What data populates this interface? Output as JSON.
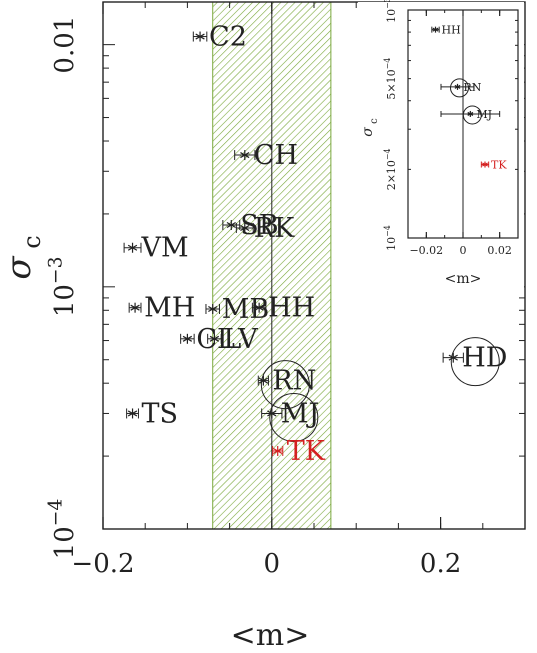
{
  "chart_data": {
    "type": "scatter",
    "title": "",
    "xlabel": "<m>",
    "ylabel_main": "σ",
    "ylabel_sub": "c",
    "yscale": "log",
    "xlim": [
      -0.2,
      0.3
    ],
    "ylim": [
      0.0001,
      0.015
    ],
    "xticks": [
      {
        "value": -0.2,
        "label": "−0.2"
      },
      {
        "value": 0,
        "label": "0"
      },
      {
        "value": 0.2,
        "label": "0.2"
      }
    ],
    "yticks": [
      {
        "value": 0.0001,
        "base": "10",
        "exp": "−4"
      },
      {
        "value": 0.001,
        "base": "10",
        "exp": "−3"
      },
      {
        "value": 0.01,
        "base": "0.01",
        "exp": ""
      }
    ],
    "band": {
      "x0": -0.07,
      "x1": 0.07,
      "color": "#7aa83c"
    },
    "colors": {
      "default": "#222222",
      "highlight": "#d42020"
    },
    "points": [
      {
        "label": "C2",
        "x": -0.085,
        "y": 0.0108,
        "xerr": 0.008
      },
      {
        "label": "CH",
        "x": -0.032,
        "y": 0.0035,
        "xerr": 0.012
      },
      {
        "label": "SB",
        "x": -0.048,
        "y": 0.0018,
        "xerr": 0.01
      },
      {
        "label": "RK",
        "x": -0.032,
        "y": 0.00175,
        "xerr": 0.01
      },
      {
        "label": "VM",
        "x": -0.165,
        "y": 0.00145,
        "xerr": 0.01
      },
      {
        "label": "MH",
        "x": -0.162,
        "y": 0.00082,
        "xerr": 0.007
      },
      {
        "label": "MB",
        "x": -0.07,
        "y": 0.00081,
        "xerr": 0.008
      },
      {
        "label": "HH",
        "x": -0.015,
        "y": 0.00082,
        "xerr": 0.008
      },
      {
        "label": "CL",
        "x": -0.1,
        "y": 0.00061,
        "xerr": 0.008
      },
      {
        "label": "LV",
        "x": -0.068,
        "y": 0.00061,
        "xerr": 0.008
      },
      {
        "label": "RN",
        "x": -0.01,
        "y": 0.00041,
        "xerr": 0.006,
        "circle": true
      },
      {
        "label": "MJ",
        "x": 0.0,
        "y": 0.0003,
        "xerr": 0.012,
        "circle": true
      },
      {
        "label": "TS",
        "x": -0.165,
        "y": 0.0003,
        "xerr": 0.007
      },
      {
        "label": "TK",
        "x": 0.007,
        "y": 0.00021,
        "xerr": 0.006,
        "highlight": true
      },
      {
        "label": "HD",
        "x": 0.215,
        "y": 0.00051,
        "xerr": 0.012,
        "circle": true
      }
    ],
    "inset": {
      "xlabel": "<m>",
      "ylabel_main": "σ",
      "ylabel_sub": "c",
      "yscale": "log",
      "xlim": [
        -0.03,
        0.03
      ],
      "ylim": [
        0.0001,
        0.001
      ],
      "xticks": [
        {
          "value": -0.02,
          "label": "−0.02"
        },
        {
          "value": 0,
          "label": "0"
        },
        {
          "value": 0.02,
          "label": "0.02"
        }
      ],
      "yticks": [
        {
          "value": 0.0001,
          "base": "10",
          "exp": "−4"
        },
        {
          "value": 0.0002,
          "base": "2×10",
          "exp": "−4"
        },
        {
          "value": 0.0005,
          "base": "5×10",
          "exp": "−4"
        },
        {
          "value": 0.001,
          "base": "10",
          "exp": "−3"
        }
      ],
      "points": [
        {
          "label": "HH",
          "x": -0.015,
          "y": 0.00082,
          "xerr": 0.002
        },
        {
          "label": "RN",
          "x": -0.003,
          "y": 0.00046,
          "xerr": 0.009,
          "circle": true
        },
        {
          "label": "MJ",
          "x": 0.004,
          "y": 0.00035,
          "xerr": 0.016,
          "circle": true
        },
        {
          "label": "TK",
          "x": 0.012,
          "y": 0.00021,
          "xerr": 0.002,
          "highlight": true
        }
      ]
    }
  }
}
